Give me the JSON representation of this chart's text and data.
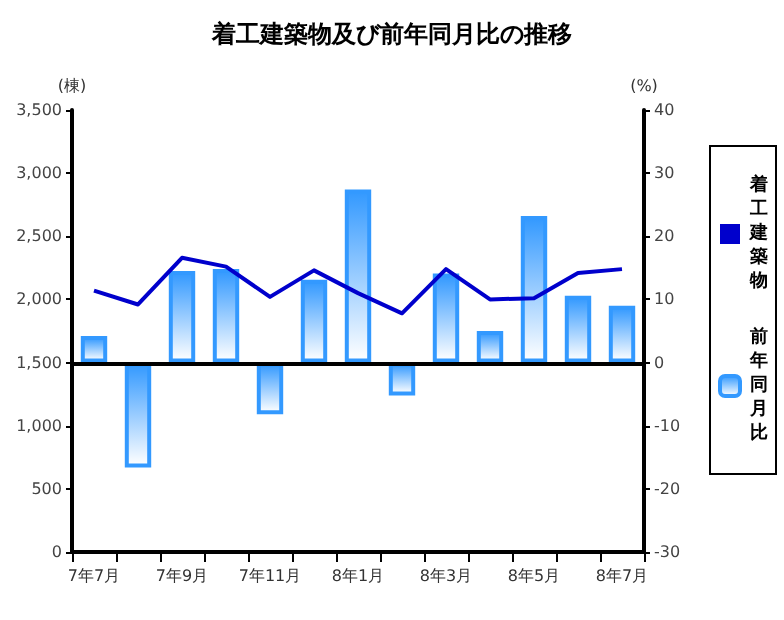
{
  "chart_data": {
    "type": "bar",
    "title": "着工建築物及び前年同月比の推移",
    "ylabel": "(棟)",
    "y2label": "(%)",
    "categories": [
      "7年7月",
      null,
      "7年9月",
      null,
      "7年11月",
      null,
      "8年1月",
      null,
      "8年3月",
      null,
      "8年5月",
      null,
      "8年7月"
    ],
    "series": [
      {
        "name": "着工建築物",
        "type": "line",
        "color": "#0000cc",
        "values": [
          2070,
          1960,
          2330,
          2260,
          2020,
          2230,
          2050,
          1890,
          2240,
          2000,
          2010,
          2210,
          2240
        ]
      },
      {
        "name": "前年同月比",
        "axis": "y2",
        "color": "#3399ff",
        "values": [
          4.2,
          -16.6,
          14.5,
          14.8,
          -8.2,
          13.1,
          27.4,
          -5.2,
          14.1,
          5,
          23.2,
          10.6,
          9
        ]
      }
    ],
    "ylim": [
      0,
      3500
    ],
    "yticks": [
      0,
      500,
      {
        "value": 1000,
        "label": "1,000"
      },
      {
        "value": 1500,
        "label": "1,500"
      },
      {
        "value": 2000,
        "label": "2,000"
      },
      {
        "value": 2500,
        "label": "2,500"
      },
      {
        "value": 3000,
        "label": "3,000"
      },
      {
        "value": 3500,
        "label": "3,500"
      }
    ],
    "y2lim": [
      -30,
      40
    ],
    "y2ticks": [
      -30,
      -20,
      -10,
      0,
      10,
      20,
      30,
      40
    ],
    "ref_lines": [
      {
        "axis": "y2",
        "value": 0,
        "color": "#000000"
      }
    ],
    "grid": false,
    "legend": "right",
    "marker": "none",
    "line_style": "solid"
  }
}
